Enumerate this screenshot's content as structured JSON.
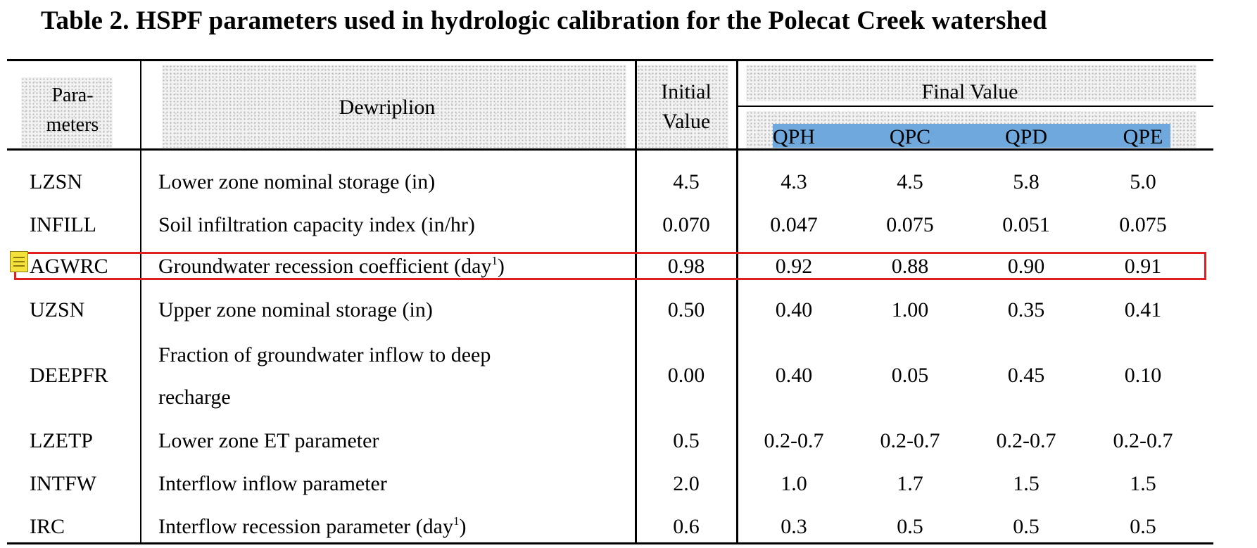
{
  "title": "Table 2. HSPF parameters used in hydrologic calibration for the Polecat Creek watershed",
  "headers": {
    "param_line1": "Para-",
    "param_line2": "meters",
    "description": "Dewriplion",
    "initial_line1": "Initial",
    "initial_line2": "Value",
    "final": "Final Value",
    "scenarios": [
      "QPH",
      "QPC",
      "QPD",
      "QPE"
    ]
  },
  "rows": [
    {
      "param": "LZSN",
      "desc": "Lower zone nominal storage (in)",
      "initial": "4.5",
      "values": [
        "4.3",
        "4.5",
        "5.8",
        "5.0"
      ]
    },
    {
      "param": "INFILL",
      "desc": "Soil infiltration capacity index (in/hr)",
      "initial": "0.070",
      "values": [
        "0.047",
        "0.075",
        "0.051",
        "0.075"
      ]
    },
    {
      "param": "AGWRC",
      "desc": "Groundwater recession coefficient (day",
      "desc_sup": "1",
      "desc_end": ")",
      "initial": "0.98",
      "values": [
        "0.92",
        "0.88",
        "0.90",
        "0.91"
      ]
    },
    {
      "param": "UZSN",
      "desc": "Upper zone nominal storage (in)",
      "initial": "0.50",
      "values": [
        "0.40",
        "1.00",
        "0.35",
        "0.41"
      ]
    },
    {
      "param": "DEEPFR",
      "desc_line1": "Fraction of groundwater inflow to deep",
      "desc_line2": "recharge",
      "initial": "0.00",
      "values": [
        "0.40",
        "0.05",
        "0.45",
        "0.10"
      ]
    },
    {
      "param": "LZETP",
      "desc": "Lower zone ET parameter",
      "initial": "0.5",
      "values": [
        "0.2-0.7",
        "0.2-0.7",
        "0.2-0.7",
        "0.2-0.7"
      ]
    },
    {
      "param": "INTFW",
      "desc": "Interflow inflow parameter",
      "initial": "2.0",
      "values": [
        "1.0",
        "1.7",
        "1.5",
        "1.5"
      ]
    },
    {
      "param": "IRC",
      "desc": "Interflow recession parameter (day",
      "desc_sup": "1",
      "desc_end": ")",
      "initial": "0.6",
      "values": [
        "0.3",
        "0.5",
        "0.5",
        "0.5"
      ]
    }
  ],
  "colors": {
    "highlight_box": "#e02020",
    "header_highlight": "#6fa8dc",
    "note_icon": "#f4e23a"
  }
}
